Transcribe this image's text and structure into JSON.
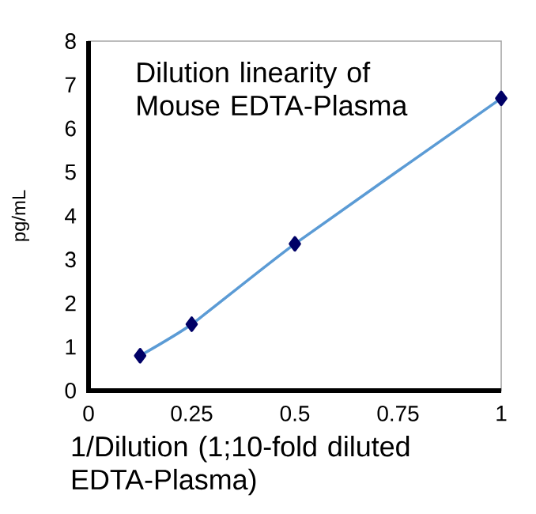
{
  "chart_data": {
    "type": "line",
    "title": "Dilution linearity of Mouse EDTA-Plasma",
    "xlabel": "1/Dilution (1;10-fold diluted EDTA-Plasma)",
    "ylabel": "pg/mL",
    "x": [
      0.125,
      0.25,
      0.5,
      1
    ],
    "series": [
      {
        "color": "#5b9bd5",
        "values": [
          0.8,
          1.52,
          3.36,
          6.69
        ]
      }
    ],
    "xlim": [
      0,
      1
    ],
    "xticks": [
      0,
      0.25,
      0.5,
      0.75,
      1
    ],
    "ylim": [
      0,
      8
    ],
    "yticks": [
      0,
      1,
      2,
      3,
      4,
      5,
      6,
      7,
      8
    ],
    "grid": false,
    "marker": "diamond",
    "line_style": "solid"
  }
}
